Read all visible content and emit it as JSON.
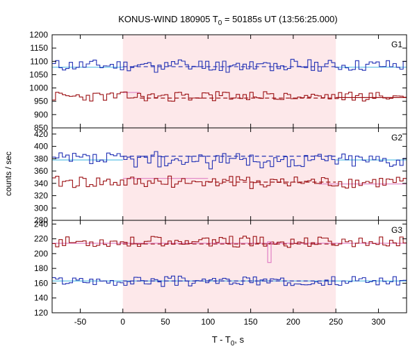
{
  "title_main": "KONUS-WIND 180905 T",
  "title_sub": "0",
  "title_rest": " = 50185s UT (13:56:25.000)",
  "ylabel": "counts / sec",
  "xlabel_main": "T - T",
  "xlabel_sub": "0",
  "xlabel_rest": ", s",
  "colors": {
    "shade": "#fde8ea",
    "blue": "#1f2fb4",
    "red": "#9b0f12",
    "cyan": "#5bc0e6",
    "pink": "#e07fc4"
  },
  "chart_data": [
    {
      "type": "line",
      "panel": "G1",
      "label": "G1",
      "xlim": [
        -83,
        333
      ],
      "ylim": [
        850,
        1200
      ],
      "yticks": [
        850,
        900,
        950,
        1000,
        1050,
        1100,
        1150,
        1200
      ],
      "xticks": [
        -50,
        0,
        50,
        100,
        150,
        200,
        250,
        300
      ],
      "shaded_interval": [
        0,
        250
      ],
      "series": [
        {
          "color": "blue",
          "base": 1085,
          "amp": 22,
          "seed": 11,
          "values": []
        },
        {
          "color": "red",
          "base": 968,
          "amp": 18,
          "seed": 23,
          "values": []
        }
      ],
      "backgrounds": [
        {
          "color": "cyan",
          "dash": false,
          "x": [
            -83,
            0
          ],
          "y": 1078
        },
        {
          "color": "cyan",
          "dash": false,
          "x": [
            250,
            333
          ],
          "y": 1078
        },
        {
          "color": "blue",
          "dash": true,
          "x": [
            0,
            250
          ],
          "y": 1080
        },
        {
          "color": "pink",
          "dash": false,
          "x": [
            0,
            20
          ],
          "y": 983
        },
        {
          "color": "red",
          "dash": true,
          "x": [
            20,
            250
          ],
          "y": 962
        },
        {
          "color": "red",
          "dash": false,
          "x": [
            250,
            333
          ],
          "y": 964
        }
      ]
    },
    {
      "type": "line",
      "panel": "G2",
      "label": "G2",
      "xlim": [
        -83,
        333
      ],
      "ylim": [
        280,
        430
      ],
      "yticks": [
        280,
        300,
        320,
        340,
        360,
        380,
        400,
        420
      ],
      "xticks": [
        -50,
        0,
        50,
        100,
        150,
        200,
        250,
        300
      ],
      "shaded_interval": [
        0,
        250
      ],
      "series": [
        {
          "color": "blue",
          "base": 378,
          "amp": 12,
          "seed": 37,
          "values": []
        },
        {
          "color": "red",
          "base": 342,
          "amp": 10,
          "seed": 41,
          "values": []
        }
      ],
      "backgrounds": [
        {
          "color": "cyan",
          "dash": false,
          "x": [
            -83,
            0
          ],
          "y": 378
        },
        {
          "color": "cyan",
          "dash": false,
          "x": [
            250,
            333
          ],
          "y": 378
        },
        {
          "color": "blue",
          "dash": true,
          "x": [
            0,
            250
          ],
          "y": 384
        },
        {
          "color": "pink",
          "dash": false,
          "x": [
            0,
            100
          ],
          "y": 348
        },
        {
          "color": "red",
          "dash": true,
          "x": [
            100,
            250
          ],
          "y": 342
        },
        {
          "color": "pink",
          "dash": false,
          "x": [
            230,
            333
          ],
          "y": 339
        }
      ]
    },
    {
      "type": "line",
      "panel": "G3",
      "label": "G3",
      "xlim": [
        -83,
        333
      ],
      "ylim": [
        120,
        245
      ],
      "yticks": [
        120,
        140,
        160,
        180,
        200,
        220,
        240
      ],
      "xticks": [
        -50,
        0,
        50,
        100,
        150,
        200,
        250,
        300
      ],
      "shaded_interval": [
        0,
        250
      ],
      "series": [
        {
          "color": "red",
          "base": 216,
          "amp": 7,
          "seed": 53,
          "values": []
        },
        {
          "color": "blue",
          "base": 163,
          "amp": 6,
          "seed": 67,
          "values": []
        }
      ],
      "backgrounds": [
        {
          "color": "pink",
          "dash": false,
          "x": [
            -83,
            333
          ],
          "y": 214
        },
        {
          "color": "red",
          "dash": true,
          "x": [
            0,
            250
          ],
          "y": 213
        },
        {
          "color": "cyan",
          "dash": false,
          "x": [
            -83,
            333
          ],
          "y": 163
        },
        {
          "color": "blue",
          "dash": true,
          "x": [
            0,
            250
          ],
          "y": 163
        }
      ],
      "spike": {
        "x": 170,
        "width": 4,
        "from": 188,
        "to": 216,
        "color": "pink"
      }
    }
  ]
}
